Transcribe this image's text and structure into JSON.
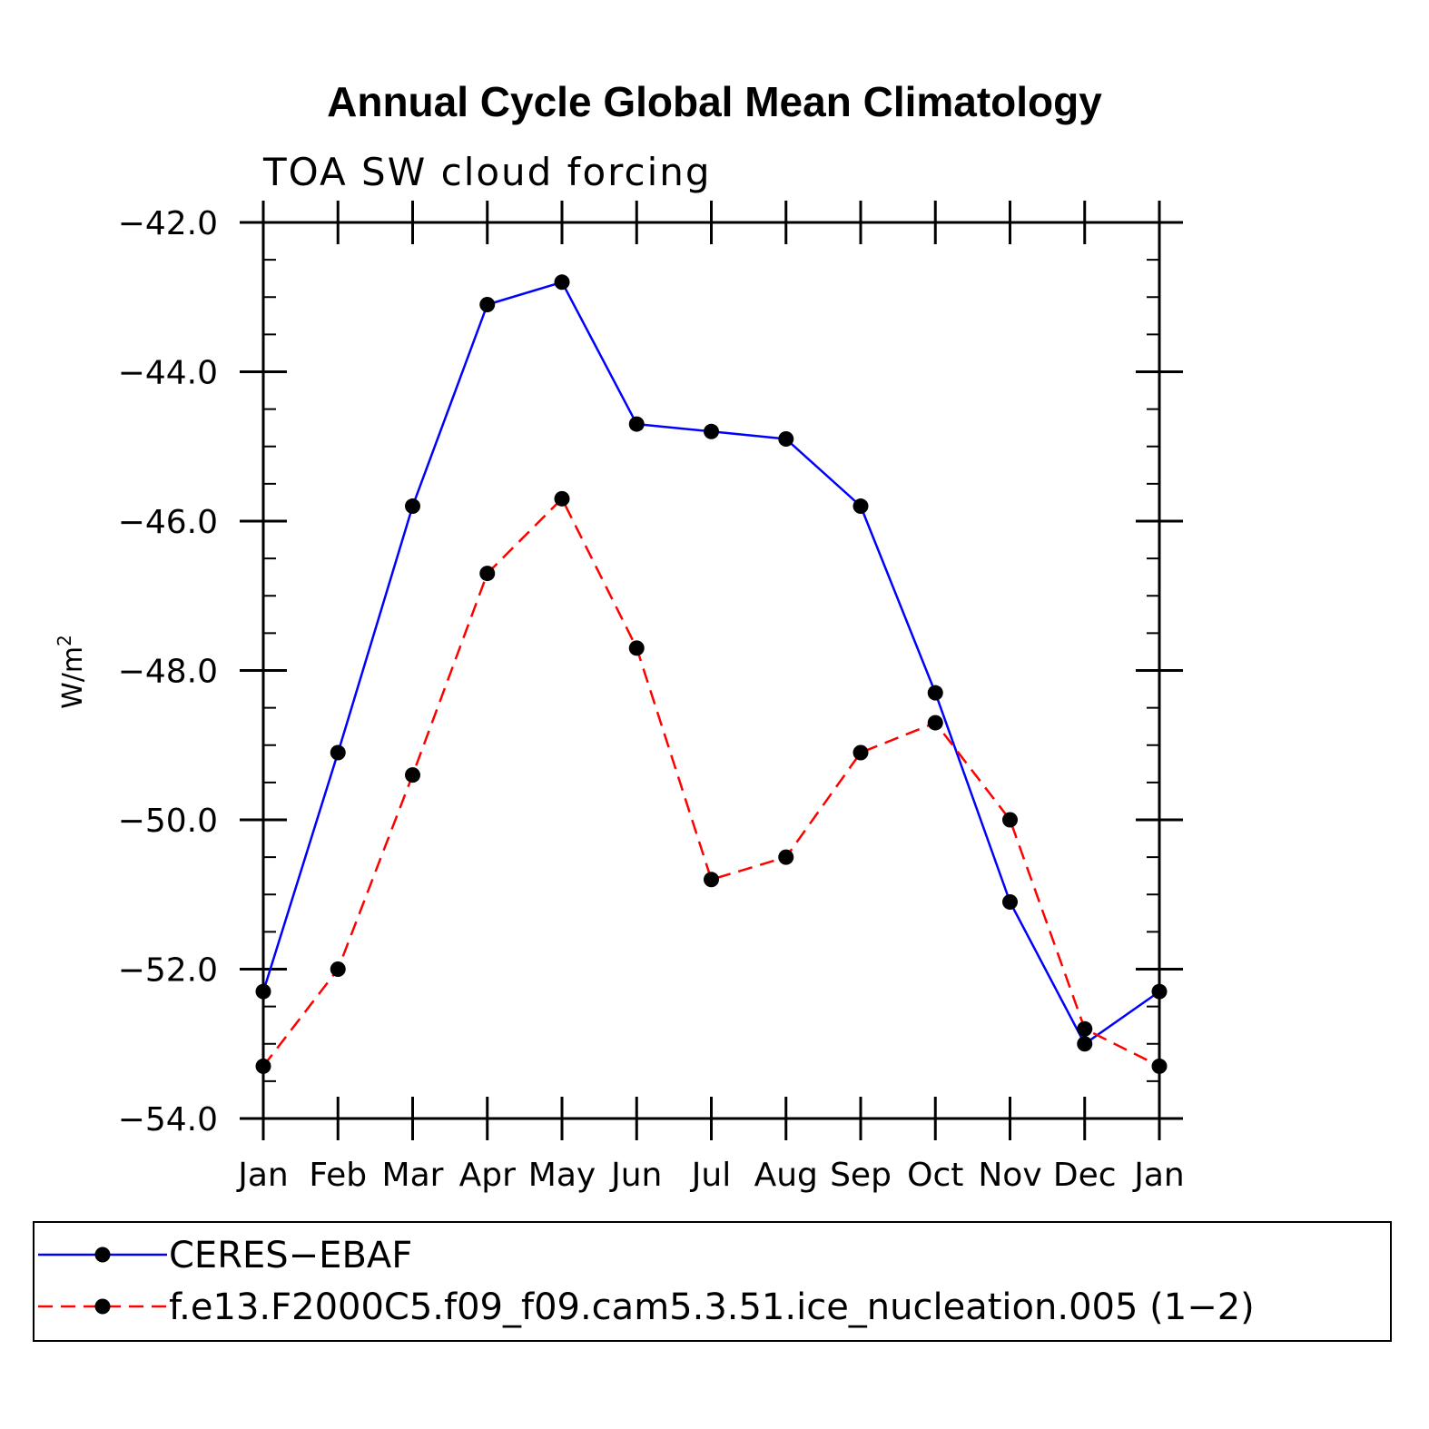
{
  "chart_data": {
    "type": "line",
    "title": "Annual Cycle Global Mean Climatology",
    "subtitle": "TOA SW cloud forcing",
    "ylabel": "W/m",
    "ylabel_superscript": "2",
    "xlabel": "",
    "ylim": [
      -54.0,
      -42.0
    ],
    "y_ticks": [
      -42.0,
      -44.0,
      -46.0,
      -48.0,
      -50.0,
      -52.0,
      -54.0
    ],
    "y_tick_labels": [
      "−42.0",
      "−44.0",
      "−46.0",
      "−48.0",
      "−50.0",
      "−52.0",
      "−54.0"
    ],
    "categories": [
      "Jan",
      "Feb",
      "Mar",
      "Apr",
      "May",
      "Jun",
      "Jul",
      "Aug",
      "Sep",
      "Oct",
      "Nov",
      "Dec",
      "Jan"
    ],
    "grid": false,
    "legend_position": "bottom",
    "series": [
      {
        "name": "CERES−EBAF",
        "color": "#0000ff",
        "style": "solid",
        "values": [
          -52.3,
          -49.1,
          -45.8,
          -43.1,
          -42.8,
          -44.7,
          -44.8,
          -44.9,
          -45.8,
          -48.3,
          -51.1,
          -53.0,
          -52.3
        ]
      },
      {
        "name": "f.e13.F2000C5.f09_f09.cam5.3.51.ice_nucleation.005 (1−2)",
        "color": "#ff0000",
        "style": "dashed",
        "values": [
          -53.3,
          -52.0,
          -49.4,
          -46.7,
          -45.7,
          -47.7,
          -50.8,
          -50.5,
          -49.1,
          -48.7,
          -50.0,
          -52.8,
          -53.3
        ]
      }
    ]
  }
}
